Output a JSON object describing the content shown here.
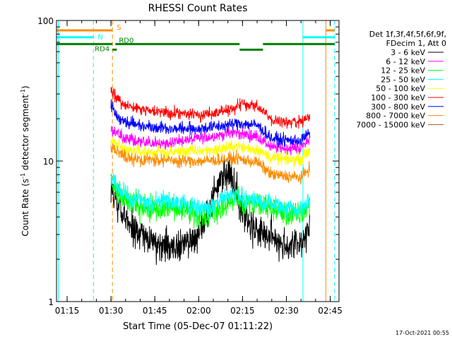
{
  "chart_data": {
    "type": "line",
    "title": "RHESSI Count Rates",
    "xlabel": "Start Time (05-Dec-07 01:11:22)",
    "ylabel": "Count Rate (s⁻¹ detector segment⁻¹)",
    "ylabel_parts": [
      "Count Rate (s",
      "-1",
      " detector segment",
      "-1",
      ")"
    ],
    "y_scale": "log",
    "ylim": [
      1,
      100
    ],
    "xlim": [
      "01:11:22",
      "02:48:00"
    ],
    "x_tick_labels": [
      "01:15",
      "01:30",
      "01:45",
      "02:00",
      "02:15",
      "02:30",
      "02:45"
    ],
    "y_tick_labels": [
      "1",
      "10",
      "100"
    ],
    "legend_header": [
      "Det 1f,3f,4f,5f,6f,9f,",
      "FDecim 1, Att 0"
    ],
    "footer_date": "17-Oct-2021 00:55",
    "series": [
      {
        "name": "3 - 6 keV",
        "color": "#000000",
        "x": [
          "01:30",
          "01:35",
          "01:40",
          "01:45",
          "01:50",
          "01:55",
          "02:00",
          "02:05",
          "02:08",
          "02:10",
          "02:13",
          "02:15",
          "02:18",
          "02:22",
          "02:25",
          "02:30",
          "02:35",
          "02:38"
        ],
        "y": [
          6.5,
          3.7,
          3.0,
          2.6,
          2.5,
          2.6,
          3.0,
          5.5,
          8.0,
          8.5,
          6.5,
          4.3,
          3.5,
          3.0,
          2.9,
          2.5,
          2.6,
          3.5
        ]
      },
      {
        "name": "6 - 12 keV",
        "color": "#ff00ff",
        "x": [
          "01:30",
          "01:35",
          "01:40",
          "01:45",
          "01:50",
          "01:55",
          "02:00",
          "02:05",
          "02:10",
          "02:13",
          "02:15",
          "02:20",
          "02:25",
          "02:30",
          "02:35",
          "02:38"
        ],
        "y": [
          16.5,
          14.5,
          13.6,
          13.3,
          13.5,
          14.0,
          14.5,
          15.0,
          15.8,
          16.0,
          15.5,
          15.0,
          12.5,
          12.3,
          12.4,
          14.5
        ]
      },
      {
        "name": "12 - 25 keV",
        "color": "#00ff00",
        "x": [
          "01:30",
          "01:35",
          "01:40",
          "01:45",
          "01:50",
          "01:55",
          "02:00",
          "02:05",
          "02:10",
          "02:13",
          "02:15",
          "02:20",
          "02:25",
          "02:30",
          "02:35",
          "02:38"
        ],
        "y": [
          7.0,
          5.2,
          4.7,
          4.5,
          4.7,
          4.5,
          4.1,
          4.3,
          5.0,
          5.3,
          5.0,
          4.8,
          4.6,
          4.2,
          4.1,
          4.8
        ]
      },
      {
        "name": "25 - 50 keV",
        "color": "#00ffff",
        "x": [
          "01:30",
          "01:35",
          "01:40",
          "01:45",
          "01:50",
          "01:55",
          "02:00",
          "02:05",
          "02:10",
          "02:13",
          "02:15",
          "02:20",
          "02:25",
          "02:30",
          "02:35",
          "02:38"
        ],
        "y": [
          7.5,
          5.7,
          5.2,
          5.0,
          5.2,
          5.0,
          4.6,
          4.8,
          5.6,
          5.9,
          5.5,
          5.2,
          5.0,
          4.6,
          4.5,
          5.3
        ]
      },
      {
        "name": "50 - 100 keV",
        "color": "#ffff00",
        "x": [
          "01:30",
          "01:35",
          "01:40",
          "01:45",
          "01:50",
          "01:55",
          "02:00",
          "02:05",
          "02:10",
          "02:13",
          "02:15",
          "02:20",
          "02:25",
          "02:30",
          "02:35",
          "02:38"
        ],
        "y": [
          14.0,
          12.0,
          11.7,
          11.5,
          11.6,
          11.7,
          11.8,
          12.0,
          12.5,
          12.8,
          12.5,
          12.0,
          10.5,
          10.2,
          10.3,
          12.0
        ]
      },
      {
        "name": "100 - 300 keV",
        "color": "#ff0000",
        "x": [
          "01:30",
          "01:32",
          "01:35",
          "01:40",
          "01:45",
          "01:50",
          "01:55",
          "02:00",
          "02:05",
          "02:10",
          "02:13",
          "02:15",
          "02:20",
          "02:25",
          "02:30",
          "02:35",
          "02:38"
        ],
        "y": [
          32.0,
          28.0,
          25.0,
          23.5,
          22.5,
          22.0,
          21.5,
          21.5,
          22.0,
          23.0,
          24.5,
          25.5,
          24.5,
          19.5,
          19.0,
          19.0,
          21.5
        ]
      },
      {
        "name": "300 - 800 keV",
        "color": "#0000ff",
        "x": [
          "01:30",
          "01:32",
          "01:35",
          "01:40",
          "01:45",
          "01:50",
          "01:55",
          "02:00",
          "02:05",
          "02:10",
          "02:13",
          "02:15",
          "02:20",
          "02:25",
          "02:30",
          "02:35",
          "02:38"
        ],
        "y": [
          25.0,
          21.0,
          19.0,
          18.0,
          17.5,
          17.0,
          17.0,
          17.0,
          17.5,
          18.0,
          18.5,
          18.5,
          18.0,
          14.5,
          14.0,
          14.0,
          16.0
        ]
      },
      {
        "name": "800 - 7000 keV",
        "color": "#ff8c00",
        "x": [
          "01:30",
          "01:35",
          "01:40",
          "01:45",
          "01:50",
          "01:55",
          "02:00",
          "02:05",
          "02:10",
          "02:13",
          "02:15",
          "02:20",
          "02:25",
          "02:30",
          "02:35",
          "02:38"
        ],
        "y": [
          12.5,
          10.5,
          10.3,
          10.2,
          10.1,
          10.0,
          10.0,
          10.1,
          10.3,
          10.5,
          10.2,
          9.8,
          8.0,
          7.8,
          7.6,
          9.0
        ]
      },
      {
        "name": "7000 - 15000 keV",
        "color": "#a0522d",
        "x": [],
        "y": []
      }
    ],
    "annotations": {
      "attenuator_bars": [
        {
          "label": "S",
          "color": "#ff8c00",
          "y_level": 85,
          "segments": [
            [
              "01:11:22",
              "01:30:30"
            ],
            [
              "02:43:30",
              "02:46:30"
            ]
          ]
        }
      ],
      "night_bars": [
        {
          "label": "N",
          "color": "#00ffff",
          "y_level": 76,
          "segments": [
            [
              "01:11:22",
              "01:24:00"
            ],
            [
              "02:35:40",
              "02:46:30"
            ]
          ]
        }
      ],
      "decimation_bars": [
        {
          "label": "RD4",
          "color": "#008000",
          "y_level": 68,
          "segments": [
            [
              "01:11:22",
              "01:30:30"
            ]
          ]
        },
        {
          "label": "RD0",
          "color": "#008000",
          "y_level": 68,
          "segments": [
            [
              "01:31:30",
              "02:14:00"
            ],
            [
              "02:22:00",
              "02:46:30"
            ]
          ]
        },
        {
          "label": "",
          "color": "#008000",
          "y_level": 62,
          "segments": [
            [
              "01:30:30",
              "01:32:00"
            ],
            [
              "02:14:00",
              "02:22:00"
            ]
          ]
        }
      ],
      "vertical_lines": [
        {
          "x": "01:12:00",
          "color": "#00ffff",
          "dash": false
        },
        {
          "x": "01:24:00",
          "color": "#00ffff",
          "dash": true
        },
        {
          "x": "01:30:30",
          "color": "#ff8c00",
          "dash": true
        },
        {
          "x": "02:35:40",
          "color": "#00ffff",
          "dash": false
        },
        {
          "x": "02:43:30",
          "color": "#ff8c00",
          "dash": false
        },
        {
          "x": "02:46:30",
          "color": "#00ffff",
          "dash": true
        }
      ]
    }
  }
}
